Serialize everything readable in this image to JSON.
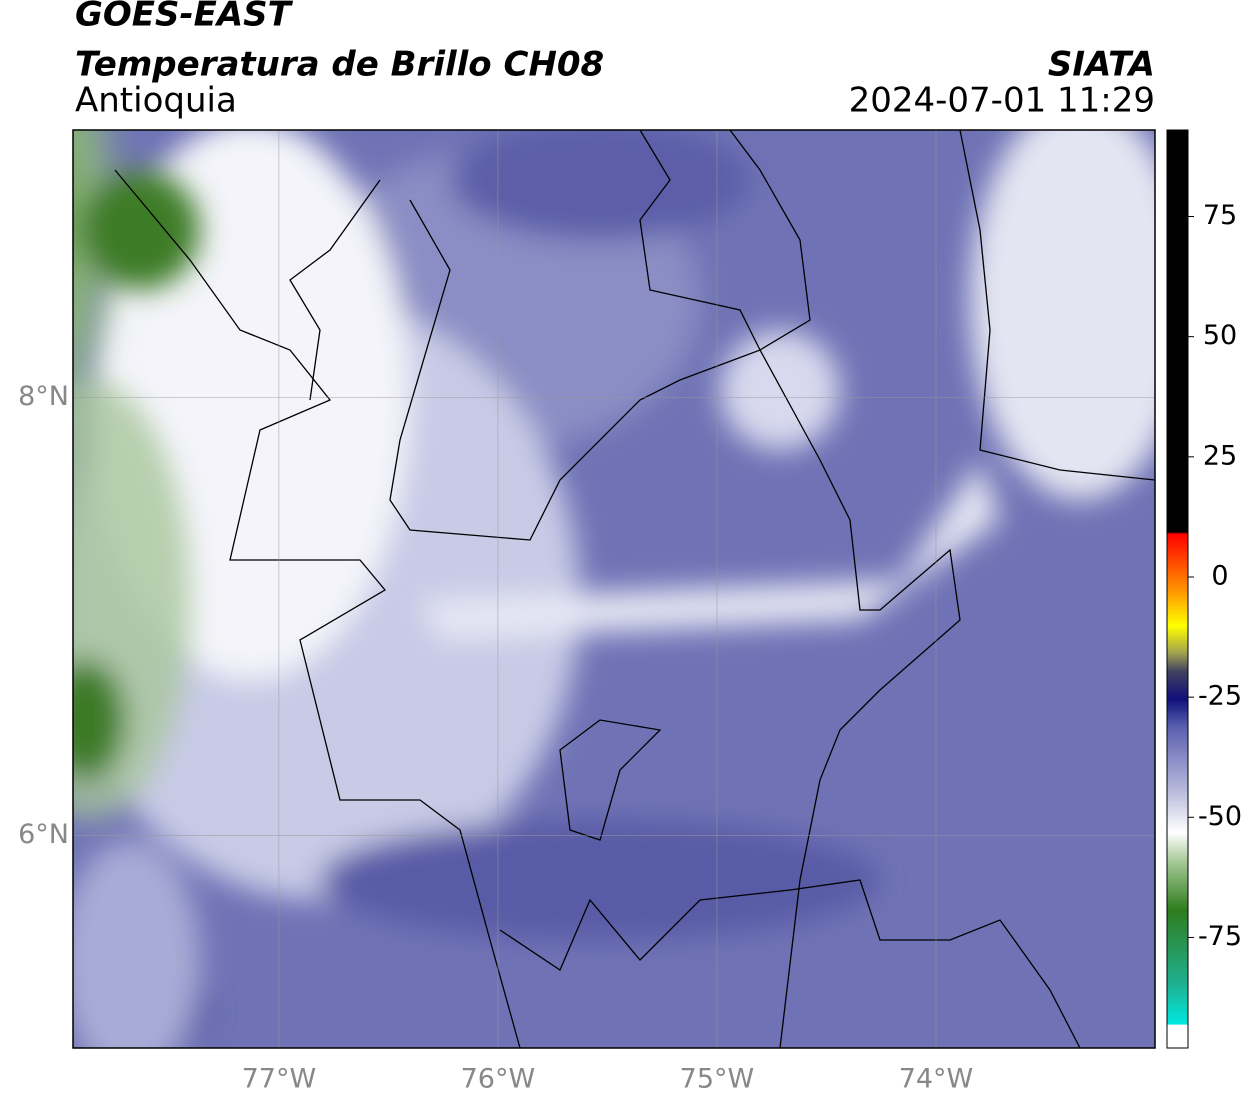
{
  "header": {
    "title": "GOES-EAST",
    "subtitle": "Temperatura de Brillo CH08",
    "region": "Antioquia",
    "source": "SIATA",
    "datetime": "2024-07-01 11:29"
  },
  "map": {
    "lonlim": [
      -77.94,
      -73.0
    ],
    "latlim": [
      5.03,
      9.22
    ],
    "lonticks": [
      {
        "value": -77,
        "label": "77°W"
      },
      {
        "value": -76,
        "label": "76°W"
      },
      {
        "value": -75,
        "label": "75°W"
      },
      {
        "value": -74,
        "label": "74°W"
      }
    ],
    "latticks": [
      {
        "value": 8,
        "label": "8°N"
      },
      {
        "value": 6,
        "label": "6°N"
      }
    ]
  },
  "colorbar": {
    "lim": [
      -98,
      93
    ],
    "ticks": [
      75,
      50,
      25,
      0,
      -25,
      -50,
      -75
    ]
  }
}
